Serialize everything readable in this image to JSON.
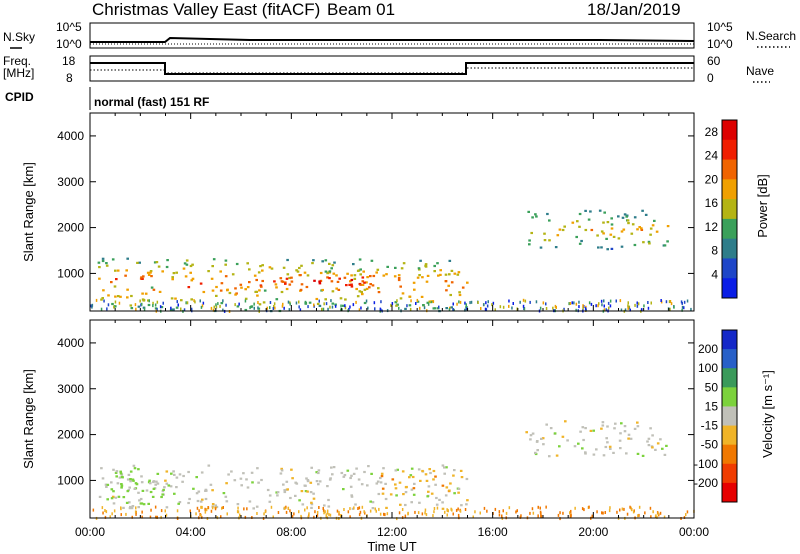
{
  "header": {
    "station": "Christmas Valley East (fitACF)",
    "beam": "Beam 01",
    "date": "18/Jan/2019"
  },
  "strips": {
    "nsky_label": "N.Sky",
    "nsky_ticks": [
      "10^5",
      "10^0"
    ],
    "nsearch_label": "N.Search",
    "nsearch_ticks": [
      "10^5",
      "10^0"
    ],
    "freq_label_1": "Freq.",
    "freq_label_2": "[MHz]",
    "freq_ticks": [
      "18",
      "8"
    ],
    "nave_label": "Nave",
    "nave_ticks": [
      "60",
      "0"
    ],
    "cpid_label": "CPID",
    "cpid_value": "normal (fast) 151 RF"
  },
  "chart_data": [
    {
      "type": "heatmap",
      "id": "power",
      "xlabel": "Time UT",
      "ylabel": "Slant Range [km]",
      "x_ticks": [
        "00:00",
        "04:00",
        "08:00",
        "12:00",
        "16:00",
        "20:00",
        "00:00"
      ],
      "y_ticks": [
        1000,
        2000,
        3000,
        4000
      ],
      "ylim": [
        180,
        4500
      ],
      "xlim_hours": [
        0,
        24
      ],
      "colorbar_label": "Power [dB]",
      "colorbar_ticks": [
        4,
        8,
        12,
        16,
        20,
        24,
        28
      ],
      "colorbar_range": [
        0,
        30
      ],
      "colors": [
        "#0a1ee6",
        "#1e46c8",
        "#2e7d8a",
        "#3aa05a",
        "#b4b414",
        "#f0a000",
        "#f06400",
        "#f01e00",
        "#dd0000"
      ],
      "regions": [
        {
          "t0": 0.3,
          "t1": 15.0,
          "r0": 200,
          "r1": 1350,
          "peak": 22
        },
        {
          "t0": 6.5,
          "t1": 11.5,
          "r0": 600,
          "r1": 1100,
          "peak": 28
        },
        {
          "t0": 0.8,
          "t1": 2.5,
          "r0": 700,
          "r1": 1100,
          "peak": 26
        },
        {
          "t0": 17.3,
          "t1": 23.0,
          "r0": 1550,
          "r1": 2400,
          "peak": 18
        }
      ]
    },
    {
      "type": "heatmap",
      "id": "velocity",
      "xlabel": "Time UT",
      "ylabel": "Slant Range [km]",
      "x_ticks": [
        "00:00",
        "04:00",
        "08:00",
        "12:00",
        "16:00",
        "20:00",
        "00:00"
      ],
      "y_ticks": [
        1000,
        2000,
        3000,
        4000
      ],
      "ylim": [
        180,
        4500
      ],
      "xlim_hours": [
        0,
        24
      ],
      "colorbar_label": "Velocity [m s⁻¹]",
      "colorbar_ticks": [
        "200",
        "100",
        "50",
        "15",
        "-15",
        "-50",
        "-100",
        "-200"
      ],
      "colors": [
        "#1428c8",
        "#2860c8",
        "#3a9a5a",
        "#7cd23c",
        "#c0c0b8",
        "#f0b428",
        "#f07800",
        "#f03c00",
        "#e60000"
      ],
      "regions": [
        {
          "t0": 0.3,
          "t1": 15.0,
          "r0": 400,
          "r1": 1350,
          "vel": 0
        },
        {
          "t0": 0.3,
          "t1": 3.5,
          "r0": 500,
          "r1": 1300,
          "vel": 30
        },
        {
          "t0": 11.5,
          "t1": 14.8,
          "r0": 700,
          "r1": 1250,
          "vel": -40
        },
        {
          "t0": 17.3,
          "t1": 23.0,
          "r0": 1550,
          "r1": 2350,
          "vel": 0
        }
      ]
    }
  ]
}
